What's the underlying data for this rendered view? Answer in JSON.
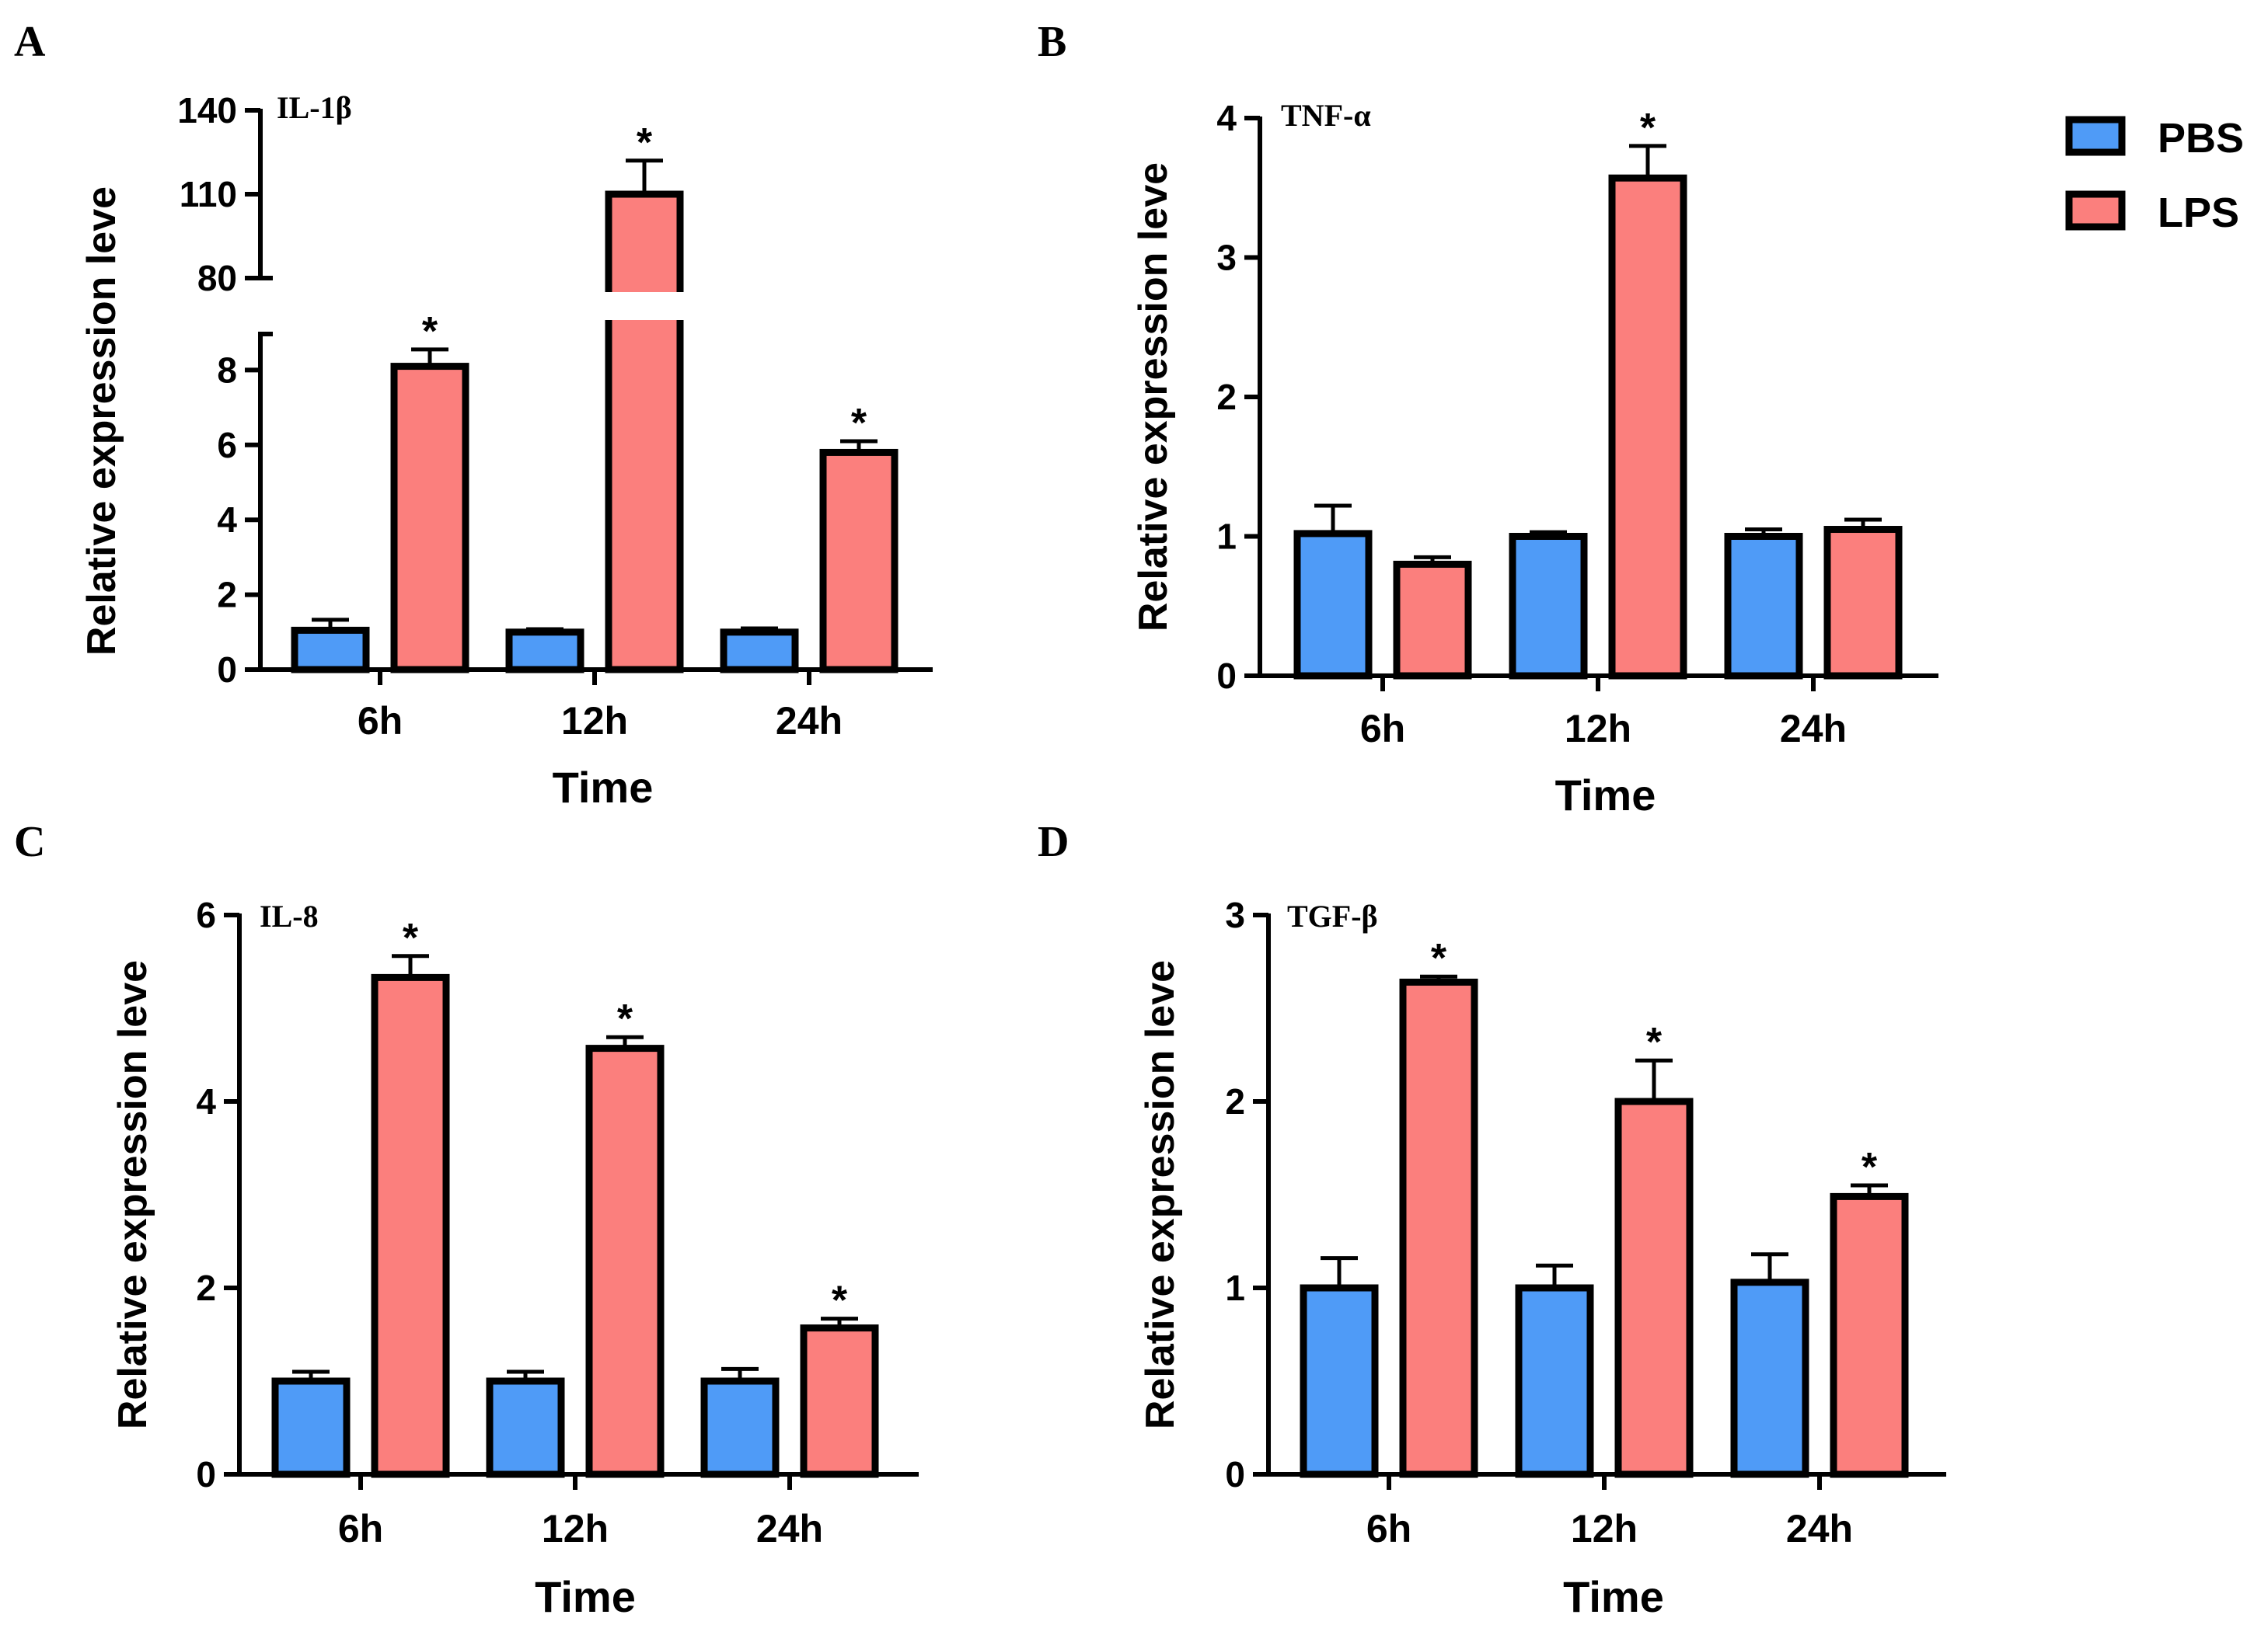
{
  "figure": {
    "legend": [
      {
        "label": "PBS",
        "color": "#4f9bf7"
      },
      {
        "label": "LPS",
        "color": "#fb7f7d"
      }
    ]
  },
  "chart_data": [
    {
      "panel": "A",
      "type": "bar",
      "title": "IL-1β",
      "xlabel": "Time",
      "ylabel": "Relative expression leve",
      "categories": [
        "6h",
        "12h",
        "24h"
      ],
      "axis_break": {
        "lower": [
          0,
          9
        ],
        "upper": [
          80,
          140
        ]
      },
      "lower_ticks": [
        "0",
        "2",
        "4",
        "6",
        "8"
      ],
      "upper_ticks": [
        "80",
        "110",
        "140"
      ],
      "series": [
        {
          "name": "PBS",
          "values": [
            1.05,
            1.0,
            1.0
          ],
          "errors": [
            0.28,
            0.08,
            0.1
          ],
          "significant": [
            false,
            false,
            false
          ]
        },
        {
          "name": "LPS",
          "values": [
            8.1,
            110,
            5.8
          ],
          "errors": [
            0.45,
            12,
            0.3
          ],
          "significant": [
            true,
            true,
            true
          ]
        }
      ],
      "star": "*"
    },
    {
      "panel": "B",
      "type": "bar",
      "title": "TNF-α",
      "xlabel": "Time",
      "ylabel": "Relative expression leve",
      "categories": [
        "6h",
        "12h",
        "24h"
      ],
      "ylim": [
        0,
        4
      ],
      "ticks": [
        "0",
        "1",
        "2",
        "3",
        "4"
      ],
      "series": [
        {
          "name": "PBS",
          "values": [
            1.02,
            1.0,
            1.0
          ],
          "errors": [
            0.2,
            0.03,
            0.05
          ],
          "significant": [
            false,
            false,
            false
          ]
        },
        {
          "name": "LPS",
          "values": [
            0.8,
            3.57,
            1.05
          ],
          "errors": [
            0.05,
            0.23,
            0.07
          ],
          "significant": [
            false,
            true,
            false
          ]
        }
      ],
      "star": "*"
    },
    {
      "panel": "C",
      "type": "bar",
      "title": "IL-8",
      "xlabel": "Time",
      "ylabel": "Relative expression leve",
      "categories": [
        "6h",
        "12h",
        "24h"
      ],
      "ylim": [
        0,
        6
      ],
      "ticks": [
        "0",
        "2",
        "4",
        "6"
      ],
      "series": [
        {
          "name": "PBS",
          "values": [
            1.0,
            1.0,
            1.0
          ],
          "errors": [
            0.1,
            0.1,
            0.13
          ],
          "significant": [
            false,
            false,
            false
          ]
        },
        {
          "name": "LPS",
          "values": [
            5.33,
            4.57,
            1.57
          ],
          "errors": [
            0.23,
            0.12,
            0.1
          ],
          "significant": [
            true,
            true,
            true
          ]
        }
      ],
      "star": "*"
    },
    {
      "panel": "D",
      "type": "bar",
      "title": "TGF-β",
      "xlabel": "Time",
      "ylabel": "Relative expression leve",
      "categories": [
        "6h",
        "12h",
        "24h"
      ],
      "ylim": [
        0,
        3
      ],
      "ticks": [
        "0",
        "1",
        "2",
        "3"
      ],
      "series": [
        {
          "name": "PBS",
          "values": [
            1.0,
            1.0,
            1.03
          ],
          "errors": [
            0.16,
            0.12,
            0.15
          ],
          "significant": [
            false,
            false,
            false
          ]
        },
        {
          "name": "LPS",
          "values": [
            2.64,
            2.0,
            1.49
          ],
          "errors": [
            0.03,
            0.22,
            0.06
          ],
          "significant": [
            true,
            true,
            true
          ]
        }
      ],
      "star": "*"
    }
  ]
}
